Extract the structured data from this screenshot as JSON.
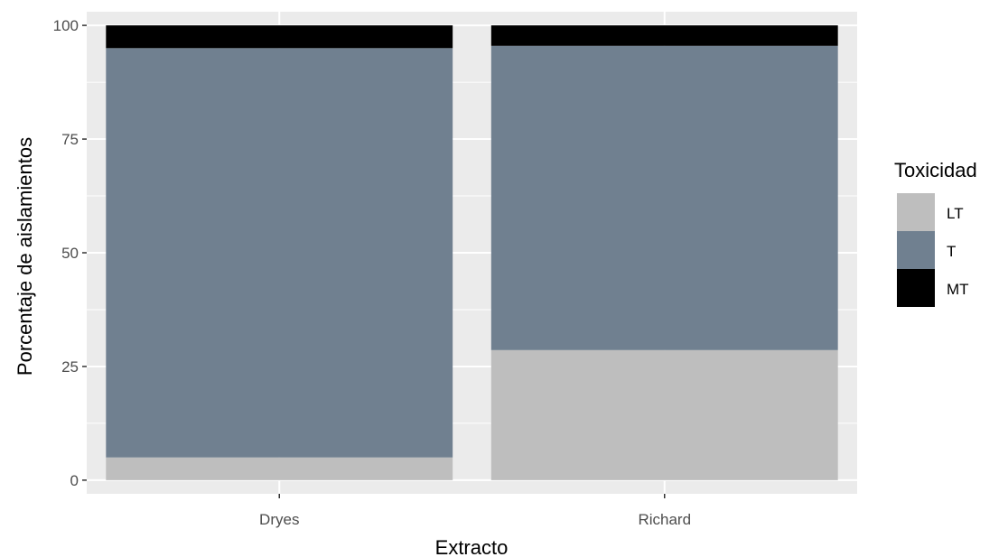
{
  "chart_data": {
    "type": "bar",
    "stacked": true,
    "percent": true,
    "categories": [
      "Dryes",
      "Richard"
    ],
    "series": [
      {
        "name": "LT",
        "values": [
          5,
          28.6
        ],
        "color": "#bebebe"
      },
      {
        "name": "T",
        "values": [
          90,
          66.9
        ],
        "color": "#708090"
      },
      {
        "name": "MT",
        "values": [
          5,
          4.5
        ],
        "color": "#000000"
      }
    ],
    "xlabel": "Extracto",
    "ylabel": "Porcentaje de aislamientos",
    "ylim": [
      -3,
      103
    ],
    "yticks": [
      0,
      25,
      50,
      75,
      100
    ],
    "ytick_labels": [
      "0",
      "25",
      "50",
      "75",
      "100"
    ],
    "legend_title": "Toxicidad",
    "legend_placement": "right",
    "grid": true,
    "panel_background": "#ebebeb"
  }
}
